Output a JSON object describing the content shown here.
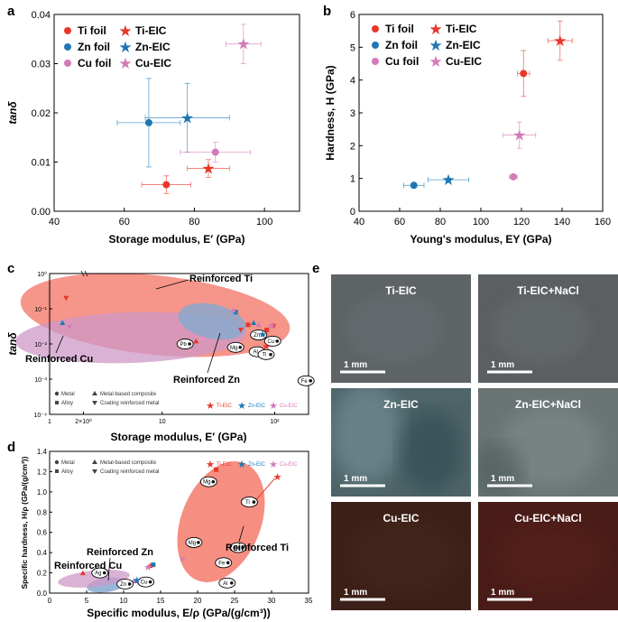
{
  "panels": {
    "a": "a",
    "b": "b",
    "c": "c",
    "d": "d",
    "e": "e"
  },
  "colors": {
    "ti": "#e8372b",
    "zn": "#1f77b4",
    "cu": "#d47ab9",
    "ti_region": "#f47b6b",
    "zn_region": "#8aa8cf",
    "cu_region": "#cd98c7"
  },
  "legend_ab": {
    "ti_foil": "Ti foil",
    "ti_eic": "Ti-EIC",
    "zn_foil": "Zn foil",
    "zn_eic": "Zn-EIC",
    "cu_foil": "Cu foil",
    "cu_eic": "Cu-EIC"
  },
  "chart_data": [
    {
      "id": "a",
      "type": "scatter",
      "xlabel": "Storage modulus, E′ (GPa)",
      "ylabel": "tanδ",
      "xlim": [
        40,
        110
      ],
      "ylim": [
        0,
        0.04
      ],
      "xticks": [
        "40",
        "60",
        "80",
        "100"
      ],
      "yticks": [
        "0.00",
        "0.01",
        "0.02",
        "0.03",
        "0.04"
      ],
      "points": [
        {
          "series": "Ti foil",
          "marker": "circle",
          "x": 72,
          "y": 0.0054,
          "xerr": 7,
          "yerr": 0.0018
        },
        {
          "series": "Ti-EIC",
          "marker": "star",
          "x": 84,
          "y": 0.0087,
          "xerr": 6,
          "yerr": 0.0018
        },
        {
          "series": "Zn foil",
          "marker": "circle",
          "x": 67,
          "y": 0.018,
          "xerr": 9,
          "yerr": 0.009
        },
        {
          "series": "Zn-EIC",
          "marker": "star",
          "x": 78,
          "y": 0.019,
          "xerr": 12,
          "yerr": 0.007
        },
        {
          "series": "Cu foil",
          "marker": "circle",
          "x": 86,
          "y": 0.012,
          "xerr": 10,
          "yerr": 0.002
        },
        {
          "series": "Cu-EIC",
          "marker": "star",
          "x": 94,
          "y": 0.034,
          "xerr": 5,
          "yerr": 0.004
        }
      ]
    },
    {
      "id": "b",
      "type": "scatter",
      "xlabel": "Young's modulus, EY (GPa)",
      "ylabel": "Hardness, H (GPa)",
      "xlim": [
        40,
        160
      ],
      "ylim": [
        0,
        6
      ],
      "xticks": [
        "40",
        "60",
        "80",
        "100",
        "120",
        "140",
        "160"
      ],
      "yticks": [
        "0",
        "1",
        "2",
        "3",
        "4",
        "5",
        "6"
      ],
      "points": [
        {
          "series": "Ti foil",
          "marker": "circle",
          "x": 121,
          "y": 4.2,
          "xerr": 3,
          "yerr": 0.7
        },
        {
          "series": "Ti-EIC",
          "marker": "star",
          "x": 139,
          "y": 5.2,
          "xerr": 6,
          "yerr": 0.6
        },
        {
          "series": "Zn foil",
          "marker": "circle",
          "x": 67,
          "y": 0.79,
          "xerr": 5,
          "yerr": 0.05
        },
        {
          "series": "Zn-EIC",
          "marker": "star",
          "x": 84,
          "y": 0.96,
          "xerr": 10,
          "yerr": 0.05
        },
        {
          "series": "Cu foil",
          "marker": "circle",
          "x": 116,
          "y": 1.05,
          "xerr": 2,
          "yerr": 0.05
        },
        {
          "series": "Cu-EIC",
          "marker": "star",
          "x": 119,
          "y": 2.32,
          "xerr": 8,
          "yerr": 0.4
        }
      ]
    },
    {
      "id": "c",
      "type": "scatter",
      "xscale": "log",
      "yscale": "log",
      "xlabel": "Storage modulus, E′ (GPa)",
      "ylabel": "tanδ",
      "xlim": [
        1,
        200
      ],
      "ylim": [
        0.0001,
        1
      ],
      "xticks": [
        "1",
        "2×10⁰",
        "10",
        "10²"
      ],
      "yticks": [
        "10⁰",
        "10⁻¹",
        "10⁻²",
        "10⁻³",
        "10⁻⁴"
      ],
      "regions": [
        "Reinforced Ti",
        "Reinforced Cu",
        "Reinforced Zn"
      ],
      "labeled_metals": [
        {
          "label": "Pb",
          "x": 16,
          "y": 0.01
        },
        {
          "label": "Mg",
          "x": 45,
          "y": 0.008
        },
        {
          "label": "Zn",
          "x": 72,
          "y": 0.018
        },
        {
          "label": "Al",
          "x": 70,
          "y": 0.006
        },
        {
          "label": "Cu",
          "x": 96,
          "y": 0.012
        },
        {
          "label": "Ti",
          "x": 84,
          "y": 0.005
        },
        {
          "label": "Fe",
          "x": 190,
          "y": 0.0009
        }
      ],
      "points": [
        {
          "marker": "tri-down",
          "x": 1.4,
          "y": 0.2
        },
        {
          "marker": "square",
          "x": 45,
          "y": 0.08
        },
        {
          "marker": "tri-up",
          "x": 43,
          "y": 0.09
        },
        {
          "marker": "square",
          "x": 58,
          "y": 0.035
        },
        {
          "marker": "tri-down",
          "x": 50,
          "y": 0.025
        },
        {
          "marker": "tri-up",
          "x": 65,
          "y": 0.04
        },
        {
          "marker": "tri-up",
          "x": 72,
          "y": 0.035
        },
        {
          "marker": "square",
          "x": 85,
          "y": 0.025
        },
        {
          "marker": "tri-up",
          "x": 20,
          "y": 0.012
        },
        {
          "marker": "tri-up",
          "x": 1.3,
          "y": 0.04
        },
        {
          "marker": "tri-down",
          "x": 1.5,
          "y": 0.03
        },
        {
          "marker": "tri-down",
          "x": 98,
          "y": 0.032
        }
      ],
      "eic_points": [
        {
          "series": "Ti-EIC",
          "x": 84,
          "y": 0.0087
        },
        {
          "series": "Zn-EIC",
          "x": 78,
          "y": 0.019
        },
        {
          "series": "Cu-EIC",
          "x": 94,
          "y": 0.034
        }
      ],
      "marker_legend": [
        "Metal",
        "Alloy",
        "Metal-based composite",
        "Coating reinforced metal"
      ],
      "series_legend": [
        "Ti-EIC",
        "Zn-EIC",
        "Cu-EIC"
      ]
    },
    {
      "id": "d",
      "type": "scatter",
      "xlabel": "Specific modulus, E/ρ (GPa/(g/cm³))",
      "ylabel": "Specific hardness, H/ρ (GPa/(g/cm³))",
      "xlim": [
        0,
        35
      ],
      "ylim": [
        0,
        1.4
      ],
      "xticks": [
        "0",
        "5",
        "10",
        "15",
        "20",
        "25",
        "30",
        "35"
      ],
      "yticks": [
        "0.0",
        "0.2",
        "0.4",
        "0.6",
        "0.8",
        "1.0",
        "1.2",
        "1.4"
      ],
      "regions": [
        "Reinforced Ti",
        "Reinforced Zn",
        "Reinforced Cu"
      ],
      "labeled_metals": [
        {
          "label": "Mg",
          "x": 21.5,
          "y": 1.1
        },
        {
          "label": "Ti",
          "x": 27,
          "y": 0.9
        },
        {
          "label": "Mg",
          "x": 19.5,
          "y": 0.5
        },
        {
          "label": "Ni",
          "x": 25.5,
          "y": 0.45
        },
        {
          "label": "Fe",
          "x": 23.5,
          "y": 0.3
        },
        {
          "label": "Al",
          "x": 24,
          "y": 0.1
        },
        {
          "label": "Ag",
          "x": 6.8,
          "y": 0.2
        },
        {
          "label": "Zn",
          "x": 10.2,
          "y": 0.09
        },
        {
          "label": "Cu",
          "x": 13,
          "y": 0.11
        }
      ],
      "points": [
        {
          "marker": "square",
          "x": 22.5,
          "y": 1.22
        },
        {
          "marker": "square",
          "x": 14,
          "y": 0.28
        },
        {
          "marker": "tri-down",
          "x": 18,
          "y": 0.33
        },
        {
          "marker": "tri-up",
          "x": 13.6,
          "y": 0.27
        },
        {
          "marker": "tri-up",
          "x": 4.5,
          "y": 0.2
        },
        {
          "marker": "square",
          "x": 11,
          "y": 0.1
        },
        {
          "marker": "square",
          "x": 11.6,
          "y": 0.12
        }
      ],
      "eic_points": [
        {
          "series": "Ti-EIC",
          "x": 30.8,
          "y": 1.15
        },
        {
          "series": "Zn-EIC",
          "x": 11.8,
          "y": 0.13
        },
        {
          "series": "Cu-EIC",
          "x": 13.3,
          "y": 0.26
        }
      ],
      "marker_legend": [
        "Metal",
        "Alloy",
        "Metal-based composite",
        "Coating reinforced metal"
      ],
      "series_legend": [
        "Ti-EIC",
        "Zn-EIC",
        "Cu-EIC"
      ]
    }
  ],
  "photos": {
    "titles": [
      "Ti-EIC",
      "Ti-EIC+NaCl",
      "Zn-EIC",
      "Zn-EIC+NaCl",
      "Cu-EIC",
      "Cu-EIC+NaCl"
    ],
    "scale_bar": "1 mm",
    "tints": [
      "#5e6366",
      "#5b5f61",
      "#4d6468",
      "#6a7474",
      "#3c2018",
      "#4a1c18"
    ]
  }
}
